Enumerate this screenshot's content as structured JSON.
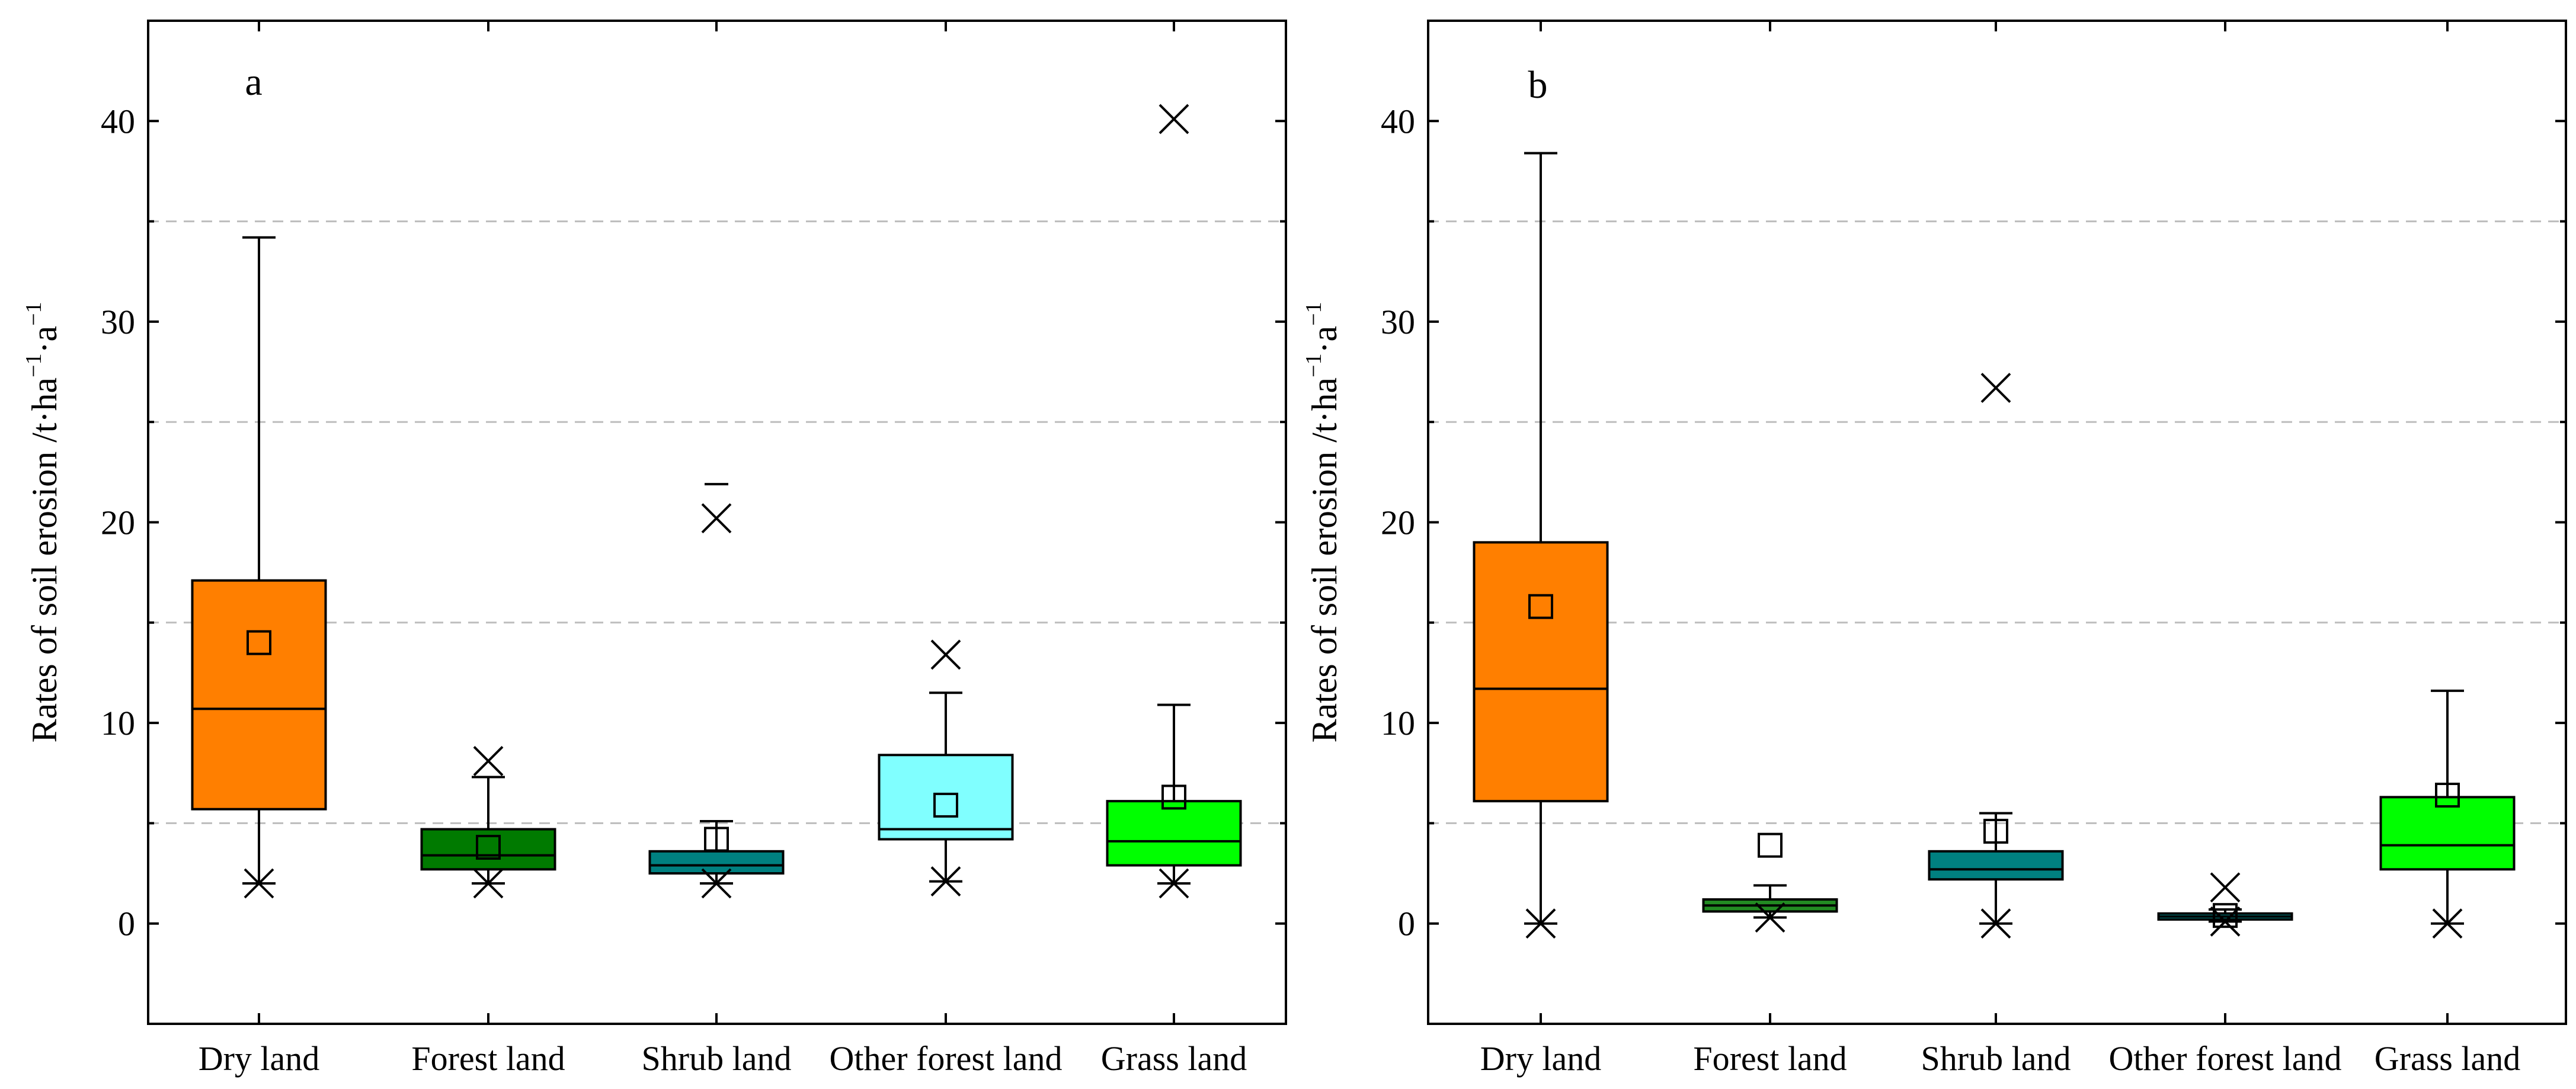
{
  "chart_data": [
    {
      "type": "box",
      "panel": "a",
      "ylabel": "Rates of soil erosion /t·ha",
      "ylabel_sup1": "−1",
      "ylabel_mid": "·a",
      "ylabel_sup2": "−1",
      "ylim": [
        -5,
        45
      ],
      "yticks": [
        0,
        10,
        20,
        30,
        40
      ],
      "grid_dashed_at": [
        5,
        15,
        25,
        35
      ],
      "categories": [
        "Dry land",
        "Forest land",
        "Shrub land",
        "Other forest land",
        "Grass land"
      ],
      "colors": [
        "#ff7f00",
        "#007a00",
        "#008080",
        "#80ffff",
        "#00ff00"
      ],
      "boxes": [
        {
          "whisker_low": 2.0,
          "q1": 5.7,
          "median": 10.7,
          "q3": 17.1,
          "whisker_high": 34.2,
          "mean": 14.0,
          "min_mark": 2.0,
          "max_mark": null,
          "extra_dash": null
        },
        {
          "whisker_low": 2.0,
          "q1": 2.7,
          "median": 3.4,
          "q3": 4.7,
          "whisker_high": 7.3,
          "mean": 3.8,
          "min_mark": 2.0,
          "max_mark": 8.1,
          "extra_dash": null
        },
        {
          "whisker_low": 2.0,
          "q1": 2.5,
          "median": 2.9,
          "q3": 3.6,
          "whisker_high": 5.1,
          "mean": 4.2,
          "min_mark": 2.0,
          "max_mark": 20.2,
          "extra_dash": 21.9
        },
        {
          "whisker_low": 2.1,
          "q1": 4.2,
          "median": 4.7,
          "q3": 8.4,
          "whisker_high": 11.5,
          "mean": 5.9,
          "min_mark": 2.1,
          "max_mark": 13.4,
          "extra_dash": null
        },
        {
          "whisker_low": 2.0,
          "q1": 2.9,
          "median": 4.1,
          "q3": 6.1,
          "whisker_high": 10.9,
          "mean": 6.3,
          "min_mark": 2.0,
          "max_mark": 40.1,
          "extra_dash": null
        }
      ]
    },
    {
      "type": "box",
      "panel": "b",
      "ylabel": "Rates of soil erosion /t·ha",
      "ylabel_sup1": "−1",
      "ylabel_mid": "·a",
      "ylabel_sup2": "−1",
      "ylim": [
        -5,
        45
      ],
      "yticks": [
        0,
        10,
        20,
        30,
        40
      ],
      "grid_dashed_at": [
        5,
        15,
        25,
        35
      ],
      "categories": [
        "Dry land",
        "Forest land",
        "Shrub land",
        "Other forest land",
        "Grass land"
      ],
      "colors": [
        "#ff7f00",
        "#228b22",
        "#008080",
        "#008080",
        "#00ff00"
      ],
      "boxes": [
        {
          "whisker_low": 0.0,
          "q1": 6.1,
          "median": 11.7,
          "q3": 19.0,
          "whisker_high": 38.4,
          "mean": 15.8,
          "min_mark": 0.0,
          "max_mark": null,
          "extra_dash": null
        },
        {
          "whisker_low": 0.3,
          "q1": 0.6,
          "median": 0.9,
          "q3": 1.2,
          "whisker_high": 1.9,
          "mean": 3.9,
          "min_mark": 0.3,
          "max_mark": null,
          "extra_dash": null
        },
        {
          "whisker_low": 0.0,
          "q1": 2.2,
          "median": 2.7,
          "q3": 3.6,
          "whisker_high": 5.5,
          "mean": 4.6,
          "min_mark": 0.0,
          "max_mark": 26.7,
          "extra_dash": null
        },
        {
          "whisker_low": 0.1,
          "q1": 0.2,
          "median": 0.35,
          "q3": 0.5,
          "whisker_high": 0.7,
          "mean": 0.4,
          "min_mark": 0.1,
          "max_mark": 1.8,
          "extra_dash": null
        },
        {
          "whisker_low": 0.0,
          "q1": 2.7,
          "median": 3.9,
          "q3": 6.3,
          "whisker_high": 11.6,
          "mean": 6.4,
          "min_mark": 0.0,
          "max_mark": null,
          "extra_dash": null
        }
      ]
    }
  ]
}
